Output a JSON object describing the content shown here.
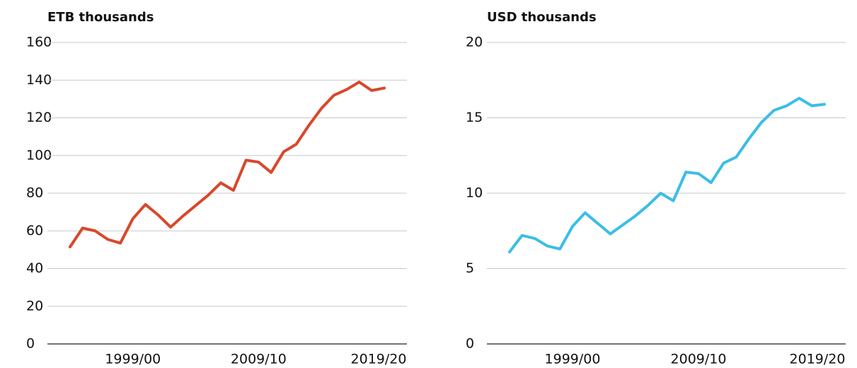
{
  "chart_data": [
    {
      "type": "line",
      "title": "ETB thousands",
      "categories": [
        null,
        null,
        null,
        null,
        null,
        "1999/00",
        null,
        null,
        null,
        null,
        null,
        null,
        null,
        null,
        null,
        "2009/10",
        null,
        null,
        null,
        null,
        null,
        null,
        null,
        null,
        null,
        "2019/20"
      ],
      "values": [
        51.5,
        61.5,
        60,
        55.5,
        53.5,
        66.5,
        74,
        68.5,
        62,
        68,
        73.5,
        79,
        85.5,
        81.5,
        97.5,
        96.5,
        91,
        102,
        106,
        116,
        125,
        132,
        135,
        139,
        134.5,
        135.8
      ],
      "color": "#d9472b",
      "ylim": [
        0,
        160
      ],
      "yticks": [
        0,
        20,
        40,
        60,
        80,
        100,
        120,
        140,
        160
      ],
      "grid": true
    },
    {
      "type": "line",
      "title": "USD thousands",
      "categories": [
        null,
        null,
        null,
        null,
        null,
        "1999/00",
        null,
        null,
        null,
        null,
        null,
        null,
        null,
        null,
        null,
        "2009/10",
        null,
        null,
        null,
        null,
        null,
        null,
        null,
        null,
        null,
        "2019/20"
      ],
      "values": [
        6.1,
        7.2,
        7.0,
        6.5,
        6.3,
        7.8,
        8.7,
        8.0,
        7.3,
        7.9,
        8.5,
        9.2,
        10.0,
        9.5,
        11.4,
        11.3,
        10.7,
        12.0,
        12.4,
        13.6,
        14.7,
        15.5,
        15.8,
        16.3,
        15.8,
        15.9
      ],
      "color": "#3bbde8",
      "ylim": [
        0,
        20
      ],
      "yticks": [
        0,
        5,
        10,
        15,
        20
      ],
      "grid": true
    }
  ]
}
